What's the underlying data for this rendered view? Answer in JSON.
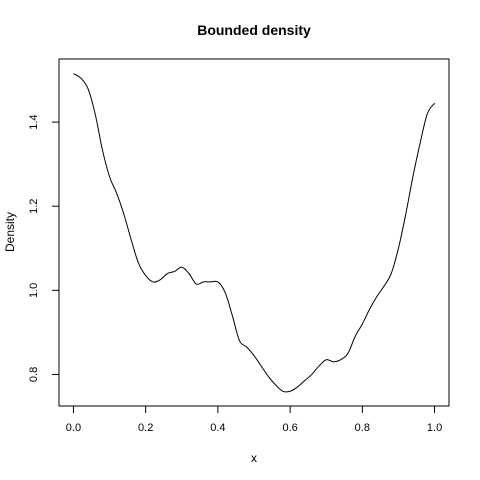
{
  "chart_data": {
    "type": "line",
    "title": "Bounded density",
    "xlabel": "x",
    "ylabel": "Density",
    "xlim": [
      -0.04,
      1.04
    ],
    "ylim": [
      0.725,
      1.55
    ],
    "x_ticks": [
      0.0,
      0.2,
      0.4,
      0.6,
      0.8,
      1.0
    ],
    "x_tick_labels": [
      "0.0",
      "0.2",
      "0.4",
      "0.6",
      "0.8",
      "1.0"
    ],
    "y_ticks": [
      0.8,
      1.0,
      1.2,
      1.4
    ],
    "y_tick_labels": [
      "0.8",
      "1.0",
      "1.2",
      "1.4"
    ],
    "grid": false,
    "legend": "none",
    "line_color": "#000000",
    "series": [
      {
        "x": [
          0.0,
          0.02,
          0.04,
          0.06,
          0.08,
          0.1,
          0.12,
          0.14,
          0.16,
          0.18,
          0.2,
          0.22,
          0.24,
          0.26,
          0.28,
          0.3,
          0.32,
          0.34,
          0.36,
          0.38,
          0.4,
          0.42,
          0.44,
          0.46,
          0.48,
          0.5,
          0.52,
          0.54,
          0.56,
          0.58,
          0.6,
          0.62,
          0.64,
          0.66,
          0.68,
          0.7,
          0.72,
          0.74,
          0.76,
          0.78,
          0.8,
          0.82,
          0.84,
          0.86,
          0.88,
          0.9,
          0.92,
          0.94,
          0.96,
          0.98,
          1.0
        ],
        "values": [
          1.515,
          1.505,
          1.48,
          1.42,
          1.335,
          1.27,
          1.23,
          1.18,
          1.12,
          1.065,
          1.035,
          1.02,
          1.025,
          1.04,
          1.045,
          1.055,
          1.04,
          1.015,
          1.02,
          1.02,
          1.02,
          0.995,
          0.94,
          0.88,
          0.865,
          0.845,
          0.82,
          0.795,
          0.775,
          0.76,
          0.76,
          0.77,
          0.785,
          0.8,
          0.82,
          0.835,
          0.83,
          0.835,
          0.85,
          0.89,
          0.92,
          0.955,
          0.985,
          1.01,
          1.04,
          1.1,
          1.18,
          1.27,
          1.35,
          1.42,
          1.445
        ]
      }
    ]
  }
}
